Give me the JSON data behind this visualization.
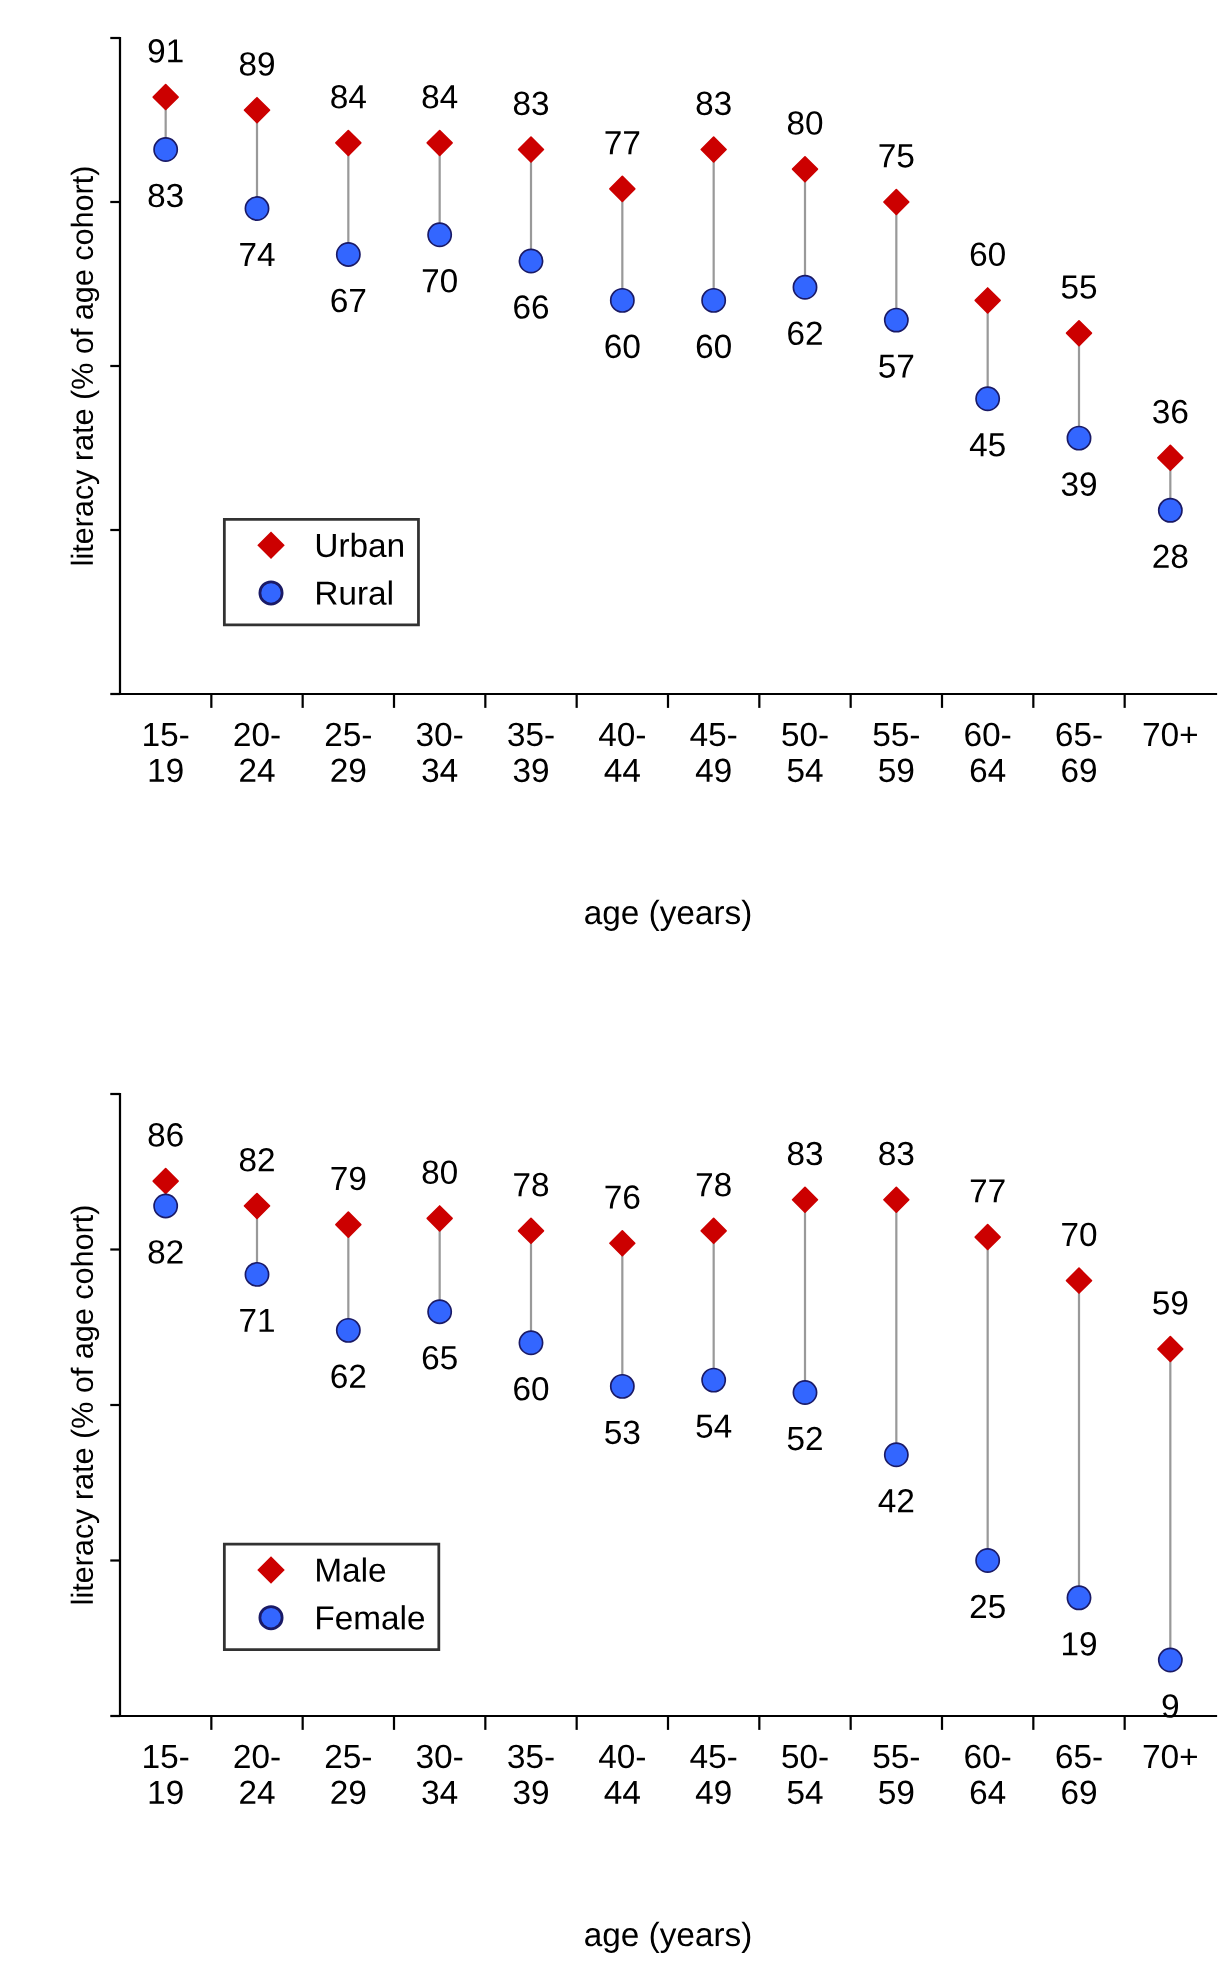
{
  "chart_data": [
    {
      "type": "scatter",
      "ylabel": "literacy rate (% of age cohort)",
      "xlabel": "age (years)",
      "categories": [
        "15-19",
        "20-24",
        "25-29",
        "30-34",
        "35-39",
        "40-44",
        "45-49",
        "50-54",
        "55-59",
        "60-64",
        "65-69",
        "70+"
      ],
      "series": [
        {
          "name": "Urban",
          "color": "#cc0000",
          "marker": "diamond",
          "values": [
            91,
            89,
            84,
            84,
            83,
            77,
            83,
            80,
            75,
            60,
            55,
            36
          ]
        },
        {
          "name": "Rural",
          "color": "#3366ff",
          "marker": "circle",
          "values": [
            83,
            74,
            67,
            70,
            66,
            60,
            60,
            62,
            57,
            45,
            39,
            28
          ]
        }
      ],
      "ylim": [
        0,
        100
      ],
      "yticks": [
        {
          "value": 0,
          "label": null
        },
        {
          "value": 25,
          "label": null
        },
        {
          "value": 50,
          "label": null
        },
        {
          "value": 75,
          "label": null
        },
        {
          "value": 100,
          "label": null
        }
      ],
      "tick_labels": "x",
      "data_labels": true,
      "legend": "lower left",
      "grid": false
    },
    {
      "type": "scatter",
      "ylabel": "literacy rate (% of age cohort)",
      "xlabel": "age (years)",
      "categories": [
        "15-19",
        "20-24",
        "25-29",
        "30-34",
        "35-39",
        "40-44",
        "45-49",
        "50-54",
        "55-59",
        "60-64",
        "65-69",
        "70+"
      ],
      "series": [
        {
          "name": "Male",
          "color": "#cc0000",
          "marker": "diamond",
          "values": [
            86,
            82,
            79,
            80,
            78,
            76,
            78,
            83,
            83,
            77,
            70,
            59
          ]
        },
        {
          "name": "Female",
          "color": "#3366ff",
          "marker": "circle",
          "values": [
            82,
            71,
            62,
            65,
            60,
            53,
            54,
            52,
            42,
            25,
            19,
            9
          ]
        }
      ],
      "ylim": [
        0,
        100
      ],
      "yticks": [
        {
          "value": 0,
          "label": null
        },
        {
          "value": 25,
          "label": null
        },
        {
          "value": 50,
          "label": null
        },
        {
          "value": 75,
          "label": null
        },
        {
          "value": 100,
          "label": null
        }
      ],
      "tick_labels": "x",
      "data_labels": true,
      "legend": "lower left",
      "grid": false
    }
  ]
}
